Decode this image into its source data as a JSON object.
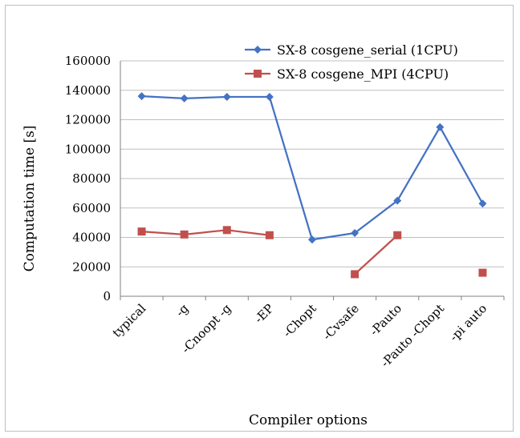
{
  "chart_data": {
    "type": "line",
    "title": "",
    "xlabel": "Compiler options",
    "ylabel": "Computation time [s]",
    "ylim": [
      0,
      160000
    ],
    "ytick_step": 20000,
    "yticks": [
      "0",
      "20000",
      "40000",
      "60000",
      "80000",
      "100000",
      "120000",
      "140000",
      "160000"
    ],
    "grid": true,
    "legend_position": "top-right",
    "categories": [
      "typical",
      "-g",
      "-Cnoopt -g",
      "-EP",
      "-Chopt",
      "-Cvsafe",
      "-Pauto",
      "-Pauto -Chopt",
      "-pi auto"
    ],
    "series": [
      {
        "name": "SX-8 cosgene_serial (1CPU)",
        "color": "#4472c4",
        "marker": "diamond",
        "values": [
          136000,
          134500,
          135500,
          135500,
          38500,
          43000,
          65000,
          115000,
          63000
        ]
      },
      {
        "name": "SX-8 cosgene_MPI (4CPU)",
        "color": "#c0504d",
        "marker": "square",
        "values": [
          44000,
          42000,
          45000,
          41500,
          null,
          15000,
          41500,
          null,
          16000
        ]
      }
    ]
  }
}
